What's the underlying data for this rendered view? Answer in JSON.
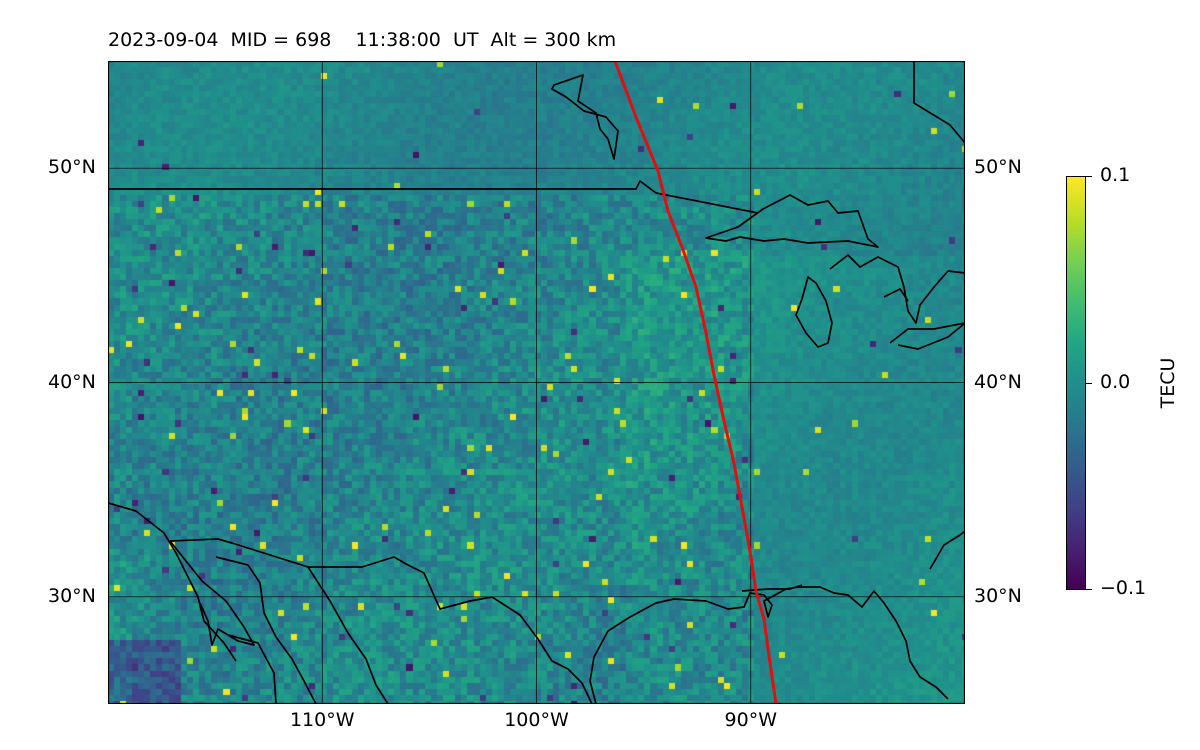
{
  "title": "2023-09-04  MID = 698    11:38:00  UT  Alt = 300 km",
  "map": {
    "extent": {
      "lon_min": -120,
      "lon_max": -80,
      "lat_min": 25,
      "lat_max": 55
    },
    "lat_ticks": [
      {
        "value": 50,
        "label": "50°N"
      },
      {
        "value": 40,
        "label": "40°N"
      },
      {
        "value": 30,
        "label": "30°N"
      }
    ],
    "lon_ticks": [
      {
        "value": -110,
        "label": "110°W"
      },
      {
        "value": -100,
        "label": "100°W"
      },
      {
        "value": -90,
        "label": "90°W"
      }
    ],
    "terminator_color": "#e01010",
    "coastline_color": "#000000"
  },
  "colorbar": {
    "label": "TECU",
    "min": -0.1,
    "max": 0.1,
    "ticks": [
      {
        "value": 0.1,
        "label": "0.1"
      },
      {
        "value": 0.0,
        "label": "0.0"
      },
      {
        "value": -0.1,
        "label": "−0.1"
      }
    ],
    "colormap": "viridis"
  }
}
